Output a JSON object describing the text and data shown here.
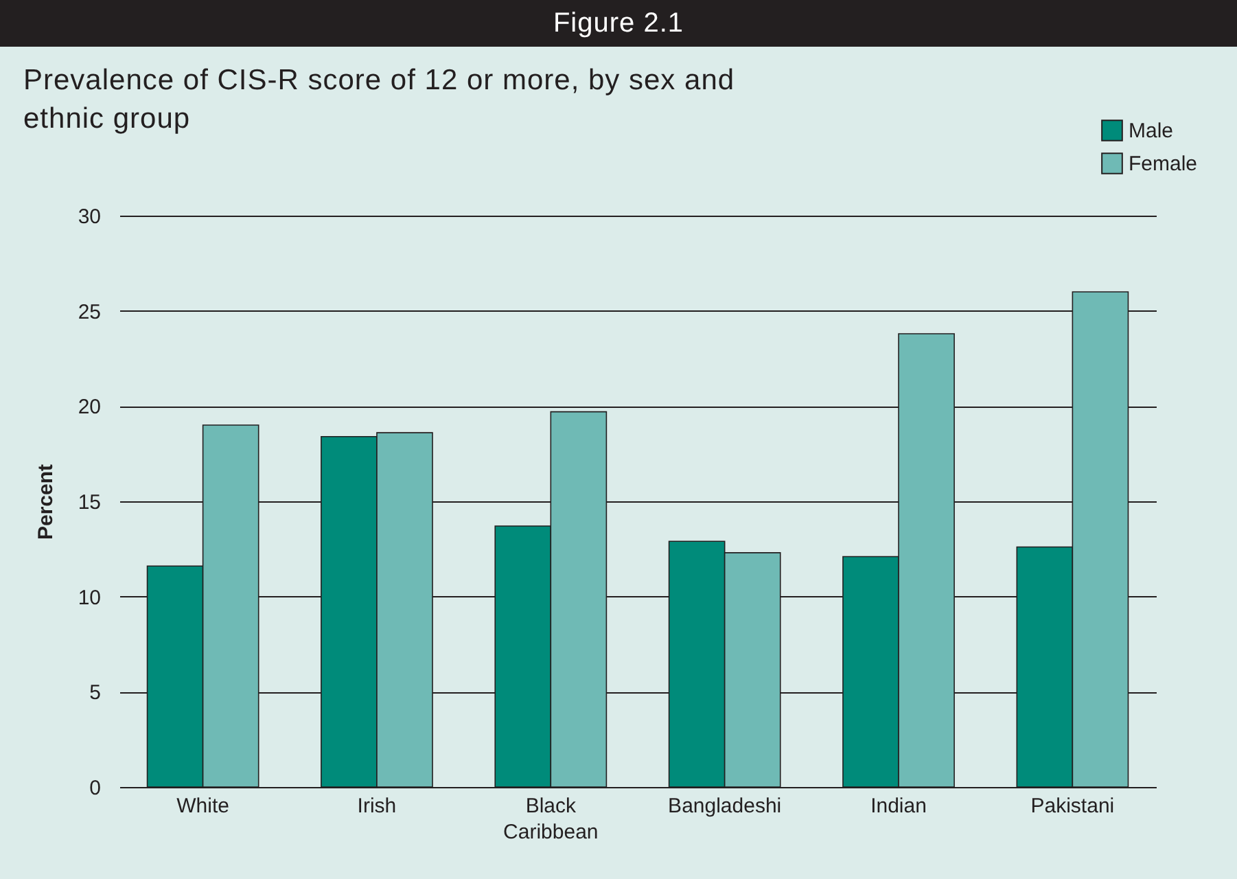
{
  "chart_data": {
    "type": "bar",
    "title": "Figure 2.1",
    "subtitle": "Prevalence of CIS-R score of 12 or more, by sex and ethnic group",
    "ylabel": "Percent",
    "categories": [
      "White",
      "Irish",
      "Black Caribbean",
      "Bangladeshi",
      "Indian",
      "Pakistani"
    ],
    "series": [
      {
        "name": "Male",
        "color": "#008b7a",
        "values": [
          11.6,
          18.4,
          13.7,
          12.9,
          12.1,
          12.6
        ]
      },
      {
        "name": "Female",
        "color": "#6fbab5",
        "values": [
          19.0,
          18.6,
          19.7,
          12.3,
          23.8,
          26.0
        ]
      }
    ],
    "ylim": [
      0,
      30
    ],
    "yticks": [
      0,
      5,
      10,
      15,
      20,
      25,
      30
    ],
    "grid": "y",
    "legend": "top right"
  }
}
